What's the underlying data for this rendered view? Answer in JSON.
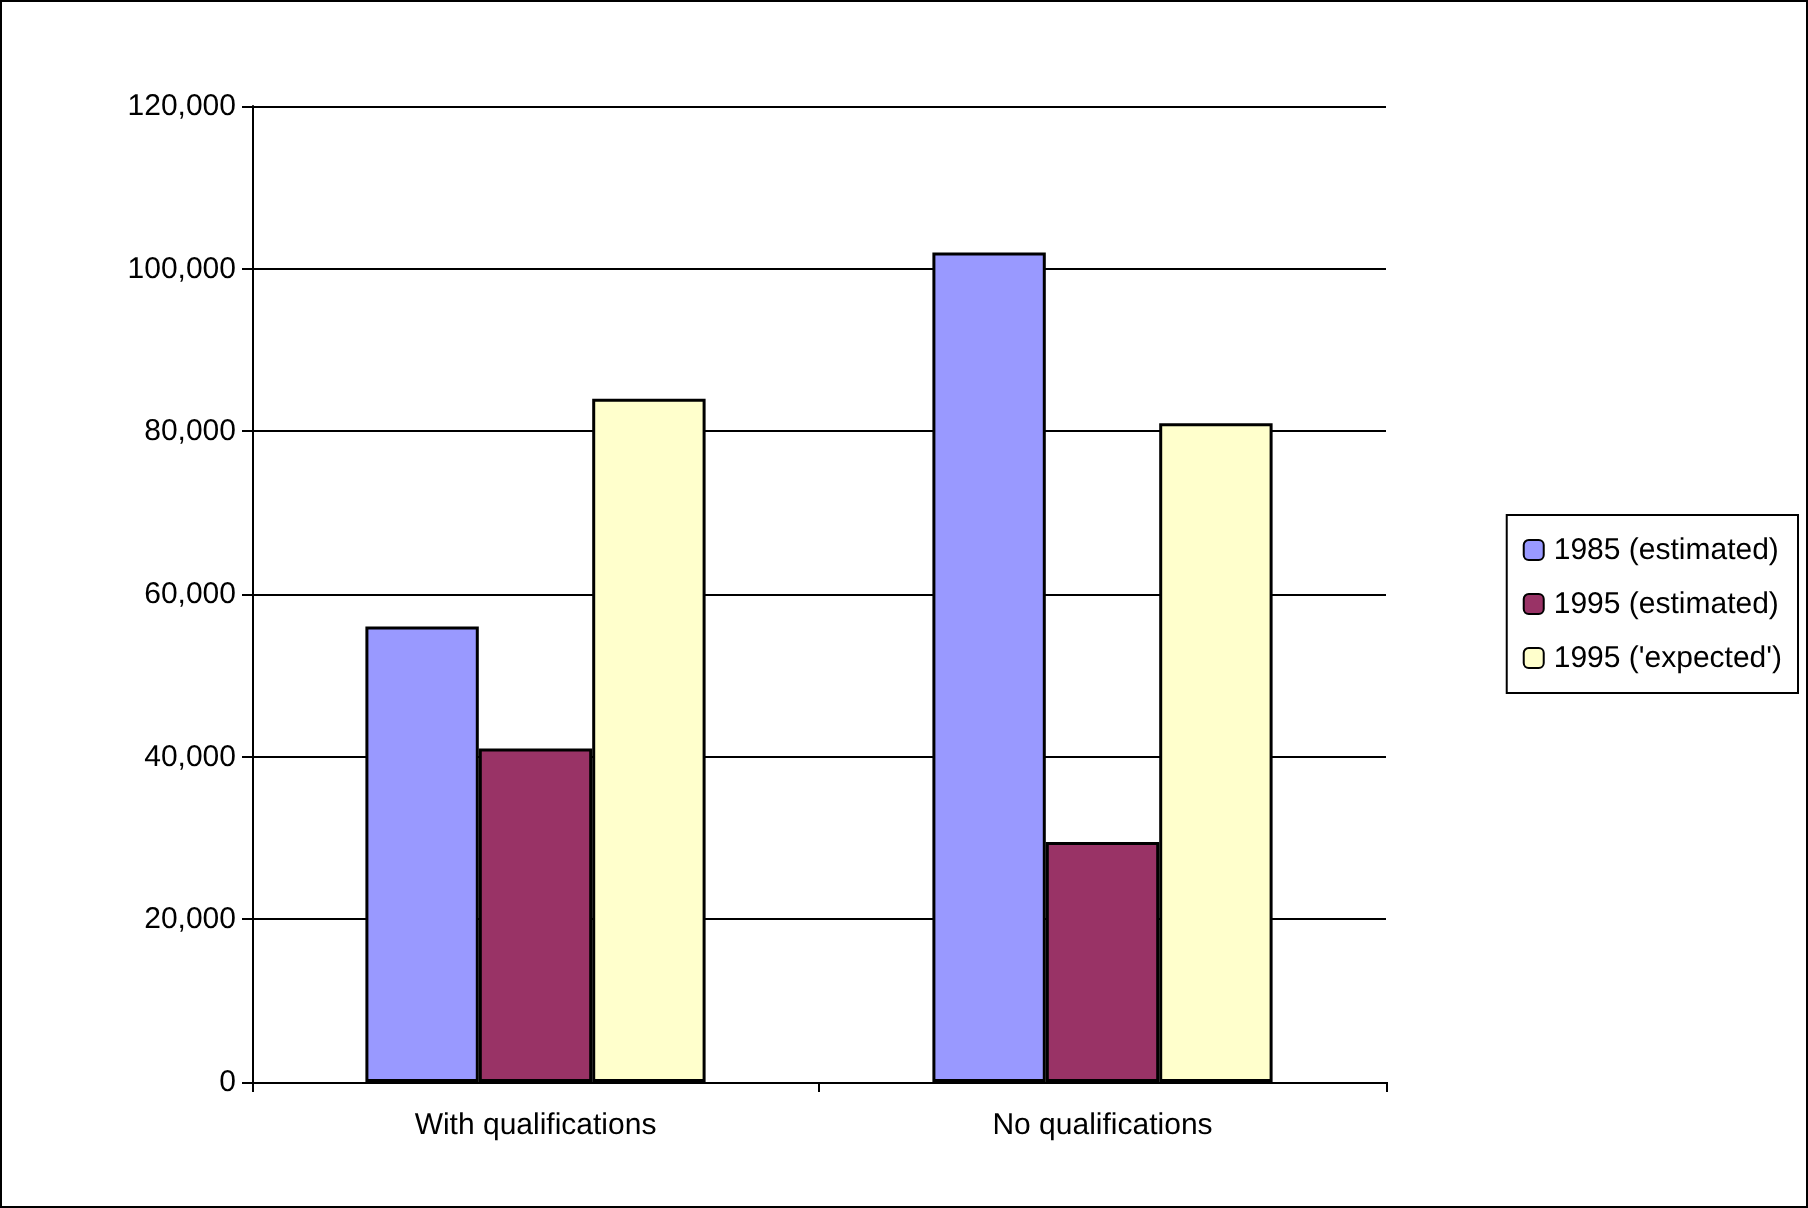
{
  "chart_data": {
    "type": "bar",
    "categories": [
      "With qualifications",
      "No qualifications"
    ],
    "series": [
      {
        "name": "1985 (estimated)",
        "color": "#9999ff",
        "values": [
          56000,
          102000
        ]
      },
      {
        "name": "1995 (estimated)",
        "color": "#993366",
        "values": [
          41000,
          29500
        ]
      },
      {
        "name": "1995 ('expected')",
        "color": "#ffffcc",
        "values": [
          84000,
          81000
        ]
      }
    ],
    "ylim": [
      0,
      120000
    ],
    "yticks": [
      0,
      {
        "value": 20000,
        "label": "20,000"
      },
      {
        "value": 40000,
        "label": "40,000"
      },
      {
        "value": 60000,
        "label": "60,000"
      },
      {
        "value": 80000,
        "label": "80,000"
      },
      {
        "value": 100000,
        "label": "100,000"
      },
      {
        "value": 120000,
        "label": "120,000"
      }
    ],
    "grid": "y",
    "legend": "right"
  }
}
